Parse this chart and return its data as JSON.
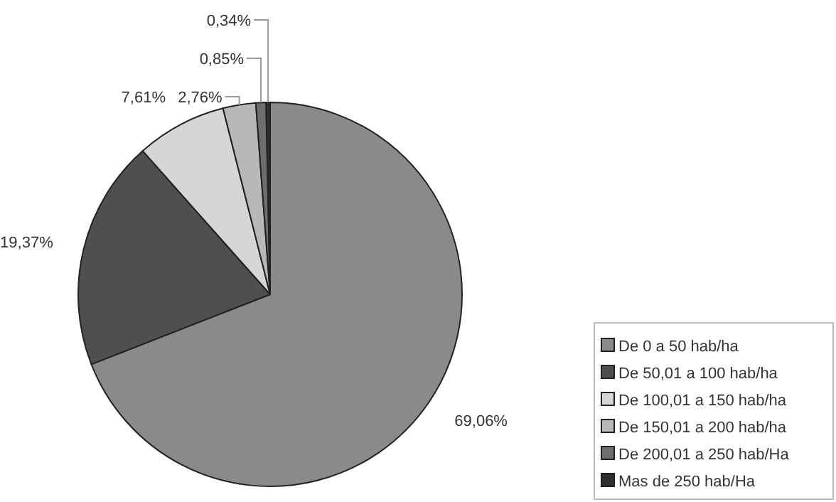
{
  "chart_data": {
    "type": "pie",
    "categories": [
      "De 0 a 50 hab/ha",
      "De 50,01 a 100 hab/ha",
      "De 100,01 a 150 hab/ha",
      "De 150,01 a 200 hab/ha",
      "De 200,01 a 250 hab/Ha",
      "Mas de 250 hab/Ha"
    ],
    "values": [
      69.06,
      19.37,
      7.61,
      2.76,
      0.85,
      0.34
    ],
    "value_labels": [
      "69,06%",
      "19,37%",
      "7,61%",
      "2,76%",
      "0,85%",
      "0,34%"
    ],
    "colors": [
      "#8a8a8a",
      "#4f4f4f",
      "#d6d6d6",
      "#b8b8b8",
      "#6e6e6e",
      "#2e2e2e"
    ],
    "legend": "bottom right"
  }
}
